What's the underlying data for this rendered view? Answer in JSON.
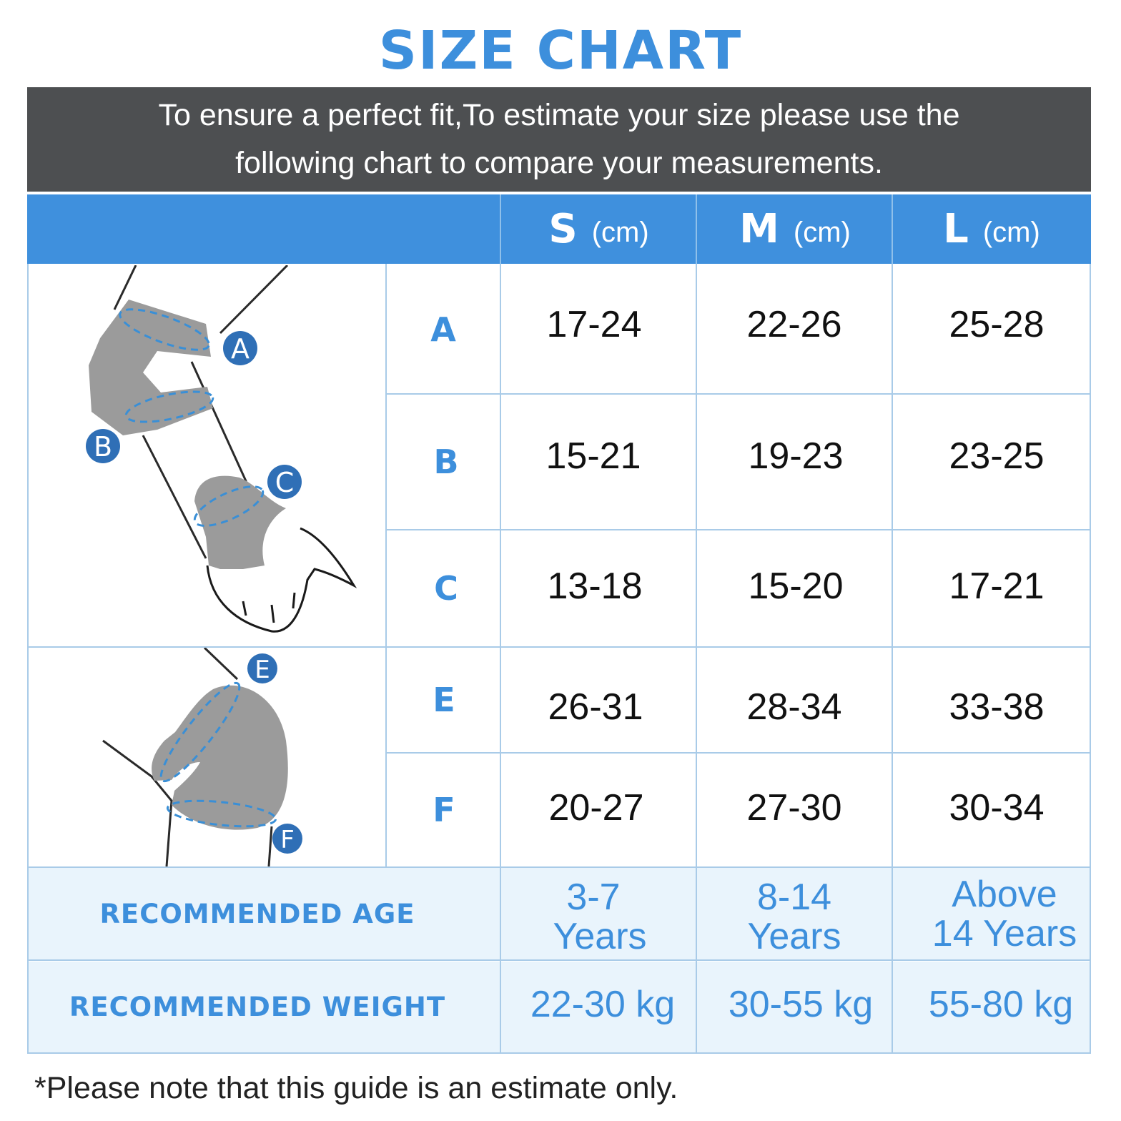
{
  "title": "SIZE CHART",
  "intro": {
    "line1": "To ensure a perfect fit,To estimate your size please use the",
    "line2": "following chart to compare your measurements."
  },
  "header": [
    {
      "size": "S",
      "unit": "(cm)"
    },
    {
      "size": "M",
      "unit": "(cm)"
    },
    {
      "size": "L",
      "unit": "(cm)"
    }
  ],
  "rows": [
    {
      "label": "A",
      "values": [
        "17-24",
        "22-26",
        "25-28"
      ]
    },
    {
      "label": "B",
      "values": [
        "15-21",
        "19-23",
        "23-25"
      ]
    },
    {
      "label": "C",
      "values": [
        "13-18",
        "15-20",
        "17-21"
      ]
    },
    {
      "label": "E",
      "values": [
        "26-31",
        "28-34",
        "33-38"
      ]
    },
    {
      "label": "F",
      "values": [
        "20-27",
        "27-30",
        "30-34"
      ]
    }
  ],
  "age": {
    "label": "RECOMMENDED AGE",
    "values": [
      {
        "line1": "3-7",
        "line2": "Years"
      },
      {
        "line1": "8-14",
        "line2": "Years"
      },
      {
        "line1": "Above",
        "line2": "14 Years"
      }
    ]
  },
  "weight": {
    "label": "RECOMMENDED WEIGHT",
    "values": [
      "22-30 kg",
      "30-55 kg",
      "55-80 kg"
    ]
  },
  "illustration": {
    "arm_markers": [
      "A",
      "B",
      "C"
    ],
    "elbow_markers": [
      "E",
      "F"
    ]
  },
  "note": "*Please note that this guide is an estimate only.",
  "colors": {
    "accent": "#3d8fdc",
    "header_bg": "#4d4f51",
    "band_bg": "#e9f4fc",
    "grid": "#a9cbe8"
  }
}
